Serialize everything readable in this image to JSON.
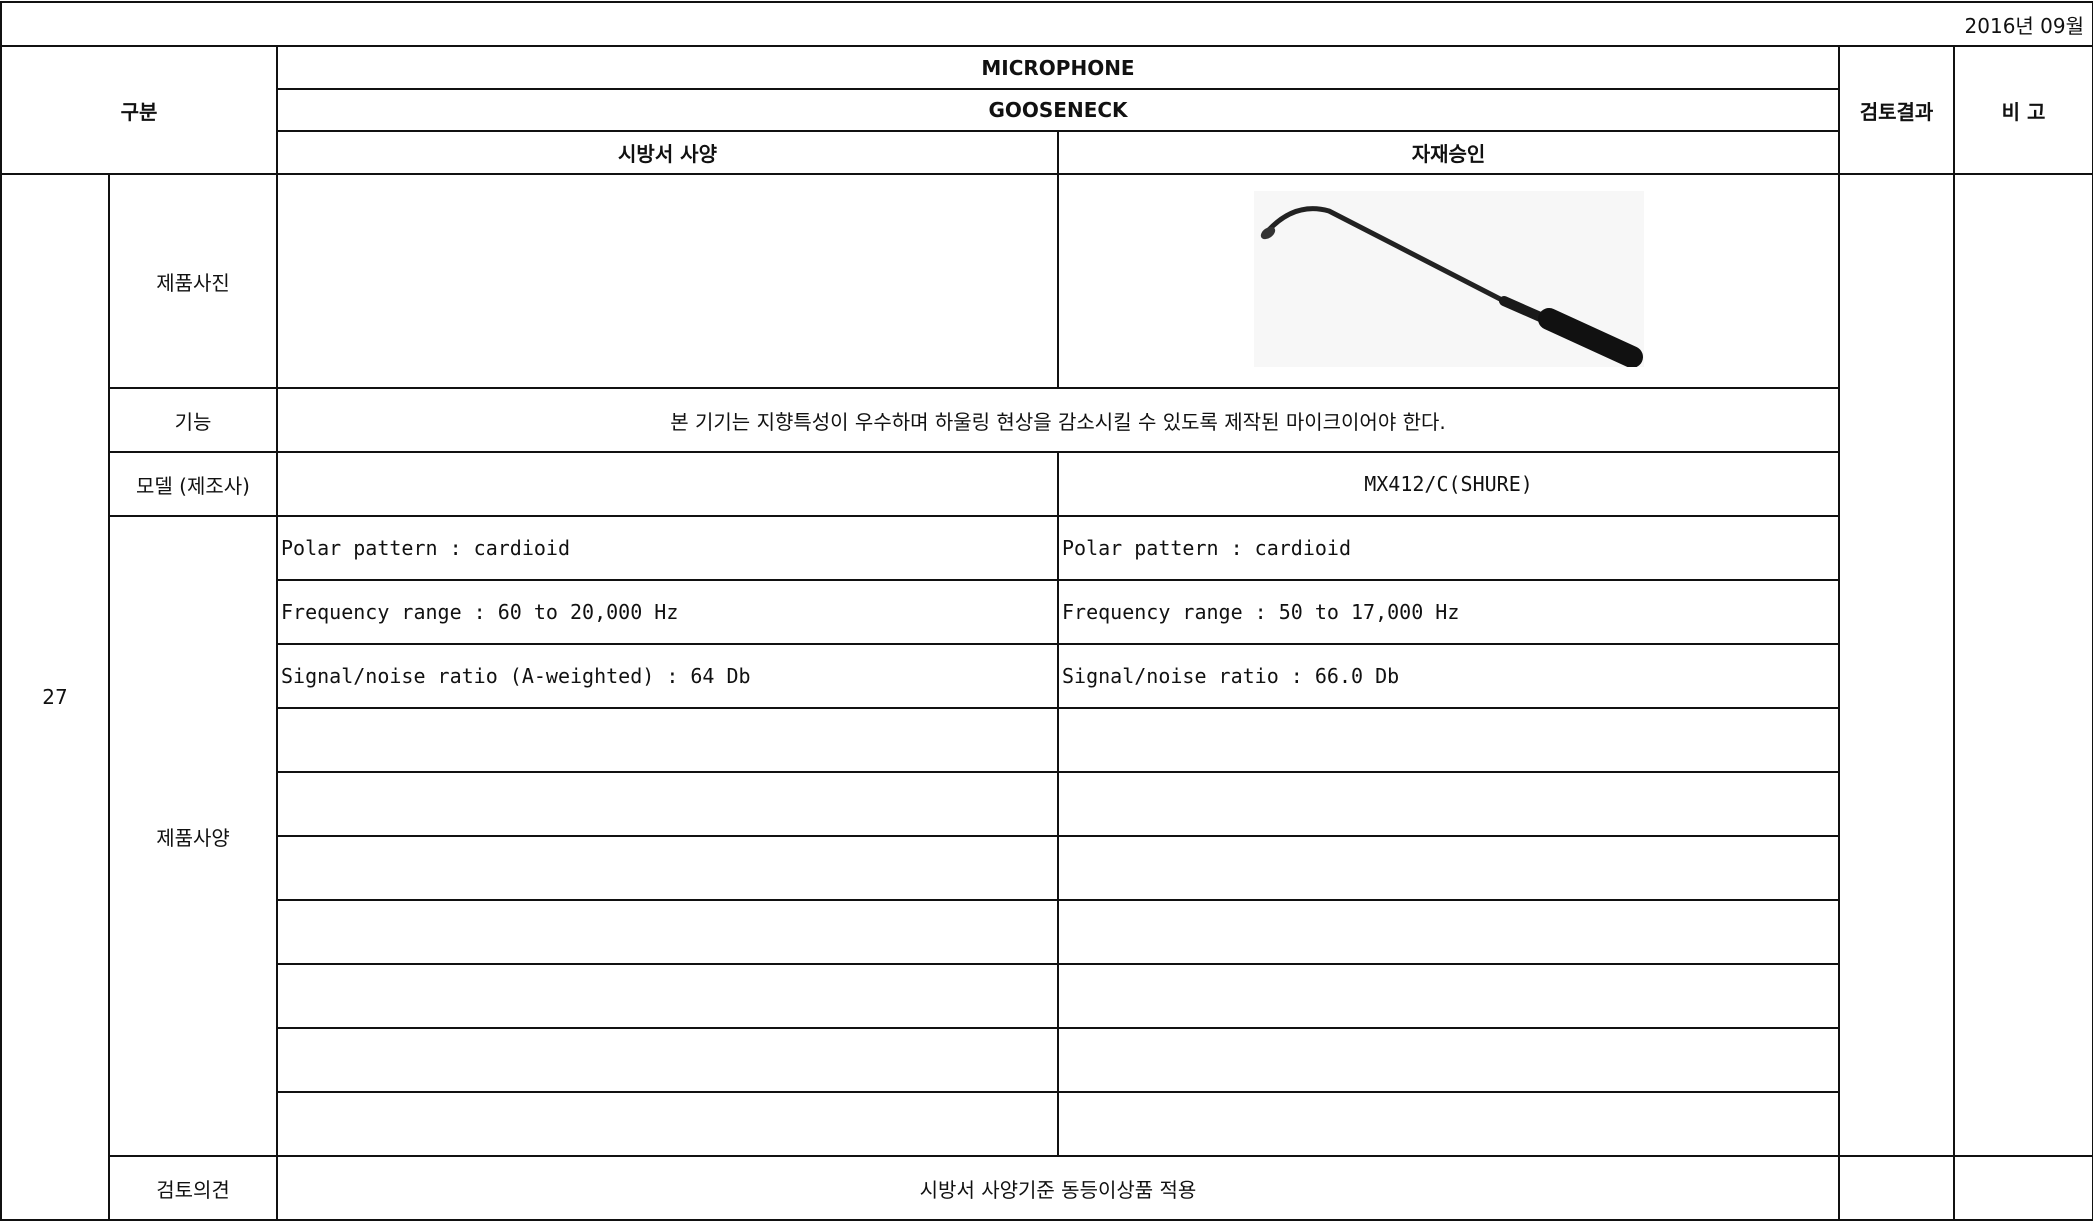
{
  "date": "2016년 09월",
  "header": {
    "category": "구분",
    "product": "MICROPHONE",
    "type": "GOOSENECK",
    "spec_column": "시방서 사양",
    "approval_column": "자재승인",
    "review_result": "검토결과",
    "remarks": "비 고"
  },
  "item": {
    "number": "27",
    "photo_label": "제품사진",
    "function_label": "기능",
    "function_text": "본 기기는 지향특성이 우수하며 하울링 현상을 감소시킬 수 있도록 제작된 마이크이어야 한다.",
    "model_label": "모델 (제조사)",
    "model_approval": "MX412/C(SHURE)",
    "spec_label": "제품사양",
    "specs": [
      [
        "Polar pattern : cardioid",
        "Polar pattern : cardioid"
      ],
      [
        "Frequency range : 60 to 20,000 Hz",
        "Frequency range : 50 to 17,000 Hz"
      ],
      [
        "Signal/noise ratio (A-weighted) : 64 Db",
        "Signal/noise ratio : 66.0 Db"
      ]
    ],
    "opinion_label": "검토의견",
    "opinion_text": "시방서 사양기준 동등이상품 적용"
  }
}
